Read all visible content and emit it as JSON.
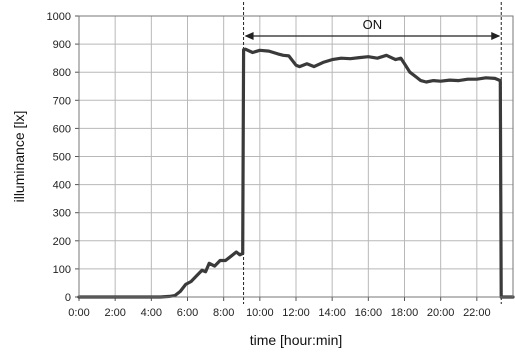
{
  "chart_data": {
    "type": "line",
    "xlabel": "time [hour:min]",
    "ylabel": "illuminance [lx]",
    "xlim": [
      0,
      24
    ],
    "ylim": [
      0,
      1000
    ],
    "grid": true,
    "x_tick_labels": [
      "0:00",
      "2:00",
      "4:00",
      "6:00",
      "8:00",
      "10:00",
      "12:00",
      "14:00",
      "16:00",
      "18:00",
      "20:00",
      "22:00"
    ],
    "x_ticks": [
      0,
      2,
      4,
      6,
      8,
      10,
      12,
      14,
      16,
      18,
      20,
      22
    ],
    "y_ticks": [
      0,
      100,
      200,
      300,
      400,
      500,
      600,
      700,
      800,
      900,
      1000
    ],
    "y_tick_labels": [
      "0",
      "100",
      "200",
      "300",
      "400",
      "500",
      "600",
      "700",
      "800",
      "900",
      "1000"
    ],
    "annotation": {
      "label": "ON",
      "start": 9.1,
      "end": 23.35
    },
    "series": [
      {
        "x": [
          0,
          2,
          4,
          4.5,
          5,
          5.3,
          5.6,
          5.9,
          6.2,
          6.5,
          6.8,
          7.0,
          7.2,
          7.5,
          7.8,
          8.1,
          8.4,
          8.7,
          8.9,
          9.05,
          9.1,
          9.2,
          9.6,
          10,
          10.5,
          11,
          11.3,
          11.6,
          12,
          12.2,
          12.6,
          13,
          13.5,
          14,
          14.5,
          15,
          15.5,
          16,
          16.5,
          17,
          17.5,
          17.8,
          18,
          18.3,
          18.6,
          18.9,
          19.2,
          19.6,
          20,
          20.5,
          21,
          21.5,
          22,
          22.5,
          23,
          23.3,
          23.35,
          23.4,
          24
        ],
        "values": [
          0,
          0,
          0,
          0,
          2,
          5,
          20,
          45,
          55,
          75,
          95,
          90,
          120,
          110,
          130,
          130,
          145,
          160,
          150,
          155,
          880,
          882,
          870,
          878,
          875,
          865,
          860,
          858,
          825,
          820,
          830,
          820,
          835,
          845,
          850,
          848,
          852,
          855,
          850,
          860,
          845,
          850,
          830,
          800,
          785,
          770,
          765,
          770,
          768,
          772,
          770,
          775,
          775,
          780,
          778,
          770,
          0,
          0,
          0
        ]
      }
    ]
  }
}
